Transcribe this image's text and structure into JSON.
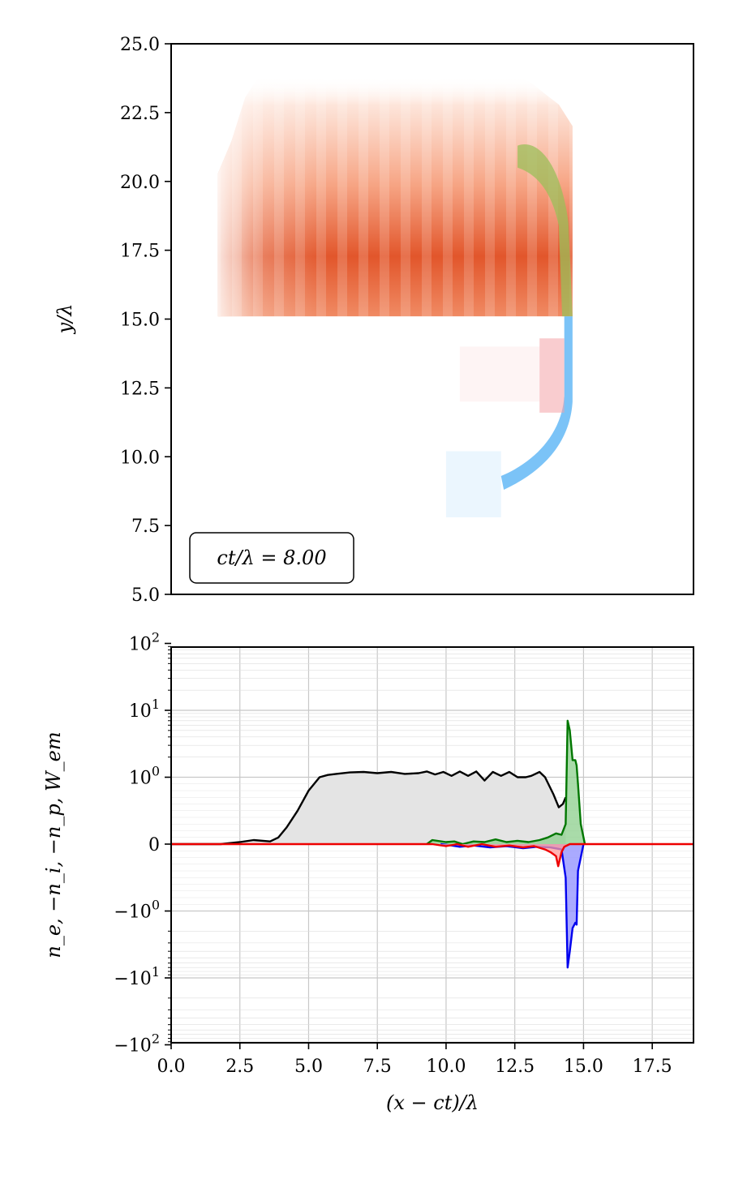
{
  "chart_data": [
    {
      "type": "heatmap",
      "ylabel": "y/λ",
      "ylim": [
        5.0,
        25.0
      ],
      "xlim": [
        0.0,
        19.0
      ],
      "y_ticks": [
        "5.0",
        "7.5",
        "10.0",
        "12.5",
        "15.0",
        "17.5",
        "20.0",
        "22.5",
        "25.0"
      ],
      "annotation": "ct/λ = 8.00",
      "layers": [
        {
          "color": "#e0502a",
          "region": "upper",
          "x_range": [
            1.7,
            14.6
          ],
          "y_range": [
            15.1,
            24.7
          ],
          "peak_y": 16.9
        },
        {
          "color": "#9bbf5a",
          "region": "upper-front",
          "x_range": [
            12.5,
            14.6
          ],
          "y_range": [
            15.1,
            21.5
          ]
        },
        {
          "color": "#5ab4f5",
          "region": "lower-front",
          "x_range": [
            12.0,
            14.6
          ],
          "y_range": [
            8.8,
            15.1
          ]
        },
        {
          "color": "#f4a3a8",
          "region": "lower",
          "x_range": [
            6.0,
            14.4
          ],
          "y_range": [
            9.0,
            14.5
          ]
        }
      ]
    },
    {
      "type": "line",
      "xlabel": "(x − ct)/λ",
      "ylabel": "n_e, −n_i, −n_p, W_em",
      "yscale": "symlog",
      "xlim": [
        0.0,
        19.0
      ],
      "ylim": [
        -120,
        120
      ],
      "grid": true,
      "x_ticks": [
        "0.0",
        "2.5",
        "5.0",
        "7.5",
        "10.0",
        "12.5",
        "15.0",
        "17.5"
      ],
      "y_ticks": [
        {
          "value": 100,
          "base": "10",
          "exp": "2",
          "sign": ""
        },
        {
          "value": 10,
          "base": "10",
          "exp": "1",
          "sign": ""
        },
        {
          "value": 1,
          "base": "10",
          "exp": "0",
          "sign": ""
        },
        {
          "value": 0,
          "base": "0",
          "exp": "",
          "sign": ""
        },
        {
          "value": -1,
          "base": "10",
          "exp": "0",
          "sign": "−"
        },
        {
          "value": -10,
          "base": "10",
          "exp": "1",
          "sign": "−"
        },
        {
          "value": -100,
          "base": "10",
          "exp": "2",
          "sign": "−"
        }
      ],
      "series": [
        {
          "color": "#000000",
          "fill": "#e4e4e4",
          "x": [
            0.0,
            1.8,
            2.5,
            3.0,
            3.6,
            3.9,
            4.2,
            4.6,
            5.0,
            5.4,
            5.7,
            6.0,
            6.5,
            7.0,
            7.5,
            8.0,
            8.5,
            9.0,
            9.3,
            9.6,
            9.9,
            10.2,
            10.5,
            10.8,
            11.1,
            11.4,
            11.7,
            12.0,
            12.3,
            12.6,
            12.9,
            13.1,
            13.4,
            13.6,
            13.9,
            14.1,
            14.25,
            14.35
          ],
          "y": [
            0.0,
            0.0,
            0.03,
            0.06,
            0.04,
            0.1,
            0.25,
            0.5,
            0.8,
            1.0,
            1.08,
            1.12,
            1.18,
            1.2,
            1.15,
            1.2,
            1.12,
            1.15,
            1.22,
            1.1,
            1.2,
            1.05,
            1.22,
            1.05,
            1.22,
            0.95,
            1.2,
            1.05,
            1.2,
            1.0,
            1.0,
            1.05,
            1.2,
            1.0,
            0.75,
            0.55,
            0.6,
            0.7
          ]
        },
        {
          "color": "#007700",
          "fill": "#8ccf8c",
          "x": [
            9.3,
            9.5,
            10.0,
            10.3,
            10.6,
            11.0,
            11.4,
            11.8,
            12.2,
            12.6,
            13.0,
            13.4,
            13.7,
            14.0,
            14.2,
            14.35,
            14.42,
            14.5,
            14.6,
            14.7,
            14.75,
            14.8,
            14.9,
            15.05
          ],
          "y": [
            0.0,
            0.06,
            0.03,
            0.04,
            0.0,
            0.04,
            0.03,
            0.07,
            0.03,
            0.05,
            0.03,
            0.06,
            0.1,
            0.16,
            0.14,
            0.3,
            7.0,
            5.0,
            1.8,
            1.8,
            1.5,
            0.9,
            0.3,
            0.0
          ]
        },
        {
          "color": "#0000ee",
          "fill": "#8d8dff",
          "x": [
            9.8,
            10.2,
            10.5,
            11.0,
            11.6,
            12.2,
            12.8,
            13.3,
            13.8,
            14.2,
            14.35,
            14.42,
            14.5,
            14.6,
            14.7,
            14.75,
            14.8,
            14.9,
            15.0
          ],
          "y": [
            0.0,
            -0.02,
            -0.04,
            -0.02,
            -0.05,
            -0.03,
            -0.06,
            -0.04,
            -0.05,
            -0.08,
            -0.5,
            -7.0,
            -4.0,
            -1.8,
            -1.5,
            -1.6,
            -0.4,
            -0.2,
            0.0
          ]
        },
        {
          "color": "#ee0000",
          "fill": "#ff9a9a",
          "x": [
            0.0,
            9.5,
            10.0,
            10.4,
            10.8,
            11.3,
            11.8,
            12.3,
            12.8,
            13.2,
            13.6,
            13.8,
            14.0,
            14.08,
            14.2,
            14.3,
            14.5,
            19.0
          ],
          "y": [
            0.0,
            0.0,
            -0.03,
            0.0,
            -0.04,
            0.0,
            -0.04,
            -0.02,
            -0.05,
            -0.03,
            -0.08,
            -0.12,
            -0.18,
            -0.33,
            -0.12,
            -0.04,
            0.0,
            0.0
          ]
        }
      ]
    }
  ]
}
